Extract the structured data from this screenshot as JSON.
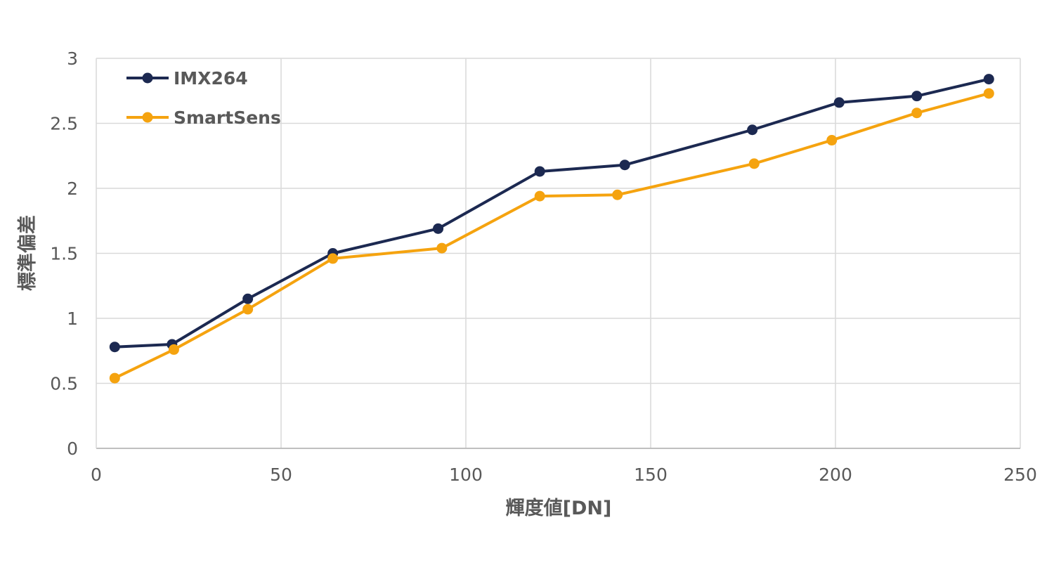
{
  "chart_data": {
    "type": "line",
    "title": "",
    "xlabel": "輝度値[DN]",
    "ylabel": "標準偏差",
    "xlim": [
      0,
      250
    ],
    "ylim": [
      0,
      3
    ],
    "x_ticks": [
      0,
      50,
      100,
      150,
      200,
      250
    ],
    "y_ticks": [
      0,
      0.5,
      1,
      1.5,
      2,
      2.5,
      3
    ],
    "x_tick_labels": [
      "0",
      "50",
      "100",
      "150",
      "200",
      "250"
    ],
    "y_tick_labels": [
      "0",
      "0.5",
      "1",
      "1.5",
      "2",
      "2.5",
      "3"
    ],
    "grid": true,
    "legend_position": "top-left",
    "series": [
      {
        "name": "IMX264",
        "color": "#1c2951",
        "x": [
          5,
          20.5,
          41,
          64,
          92.5,
          120,
          143,
          177.5,
          201,
          222,
          241.5
        ],
        "y": [
          0.78,
          0.8,
          1.15,
          1.5,
          1.69,
          2.13,
          2.18,
          2.45,
          2.66,
          2.71,
          2.84
        ]
      },
      {
        "name": "SmartSens",
        "color": "#f5a30f",
        "x": [
          5,
          21,
          41,
          64,
          93.5,
          120,
          141,
          178,
          199,
          222,
          241.5
        ],
        "y": [
          0.54,
          0.76,
          1.07,
          1.46,
          1.54,
          1.94,
          1.95,
          2.19,
          2.37,
          2.58,
          2.73
        ]
      }
    ]
  }
}
